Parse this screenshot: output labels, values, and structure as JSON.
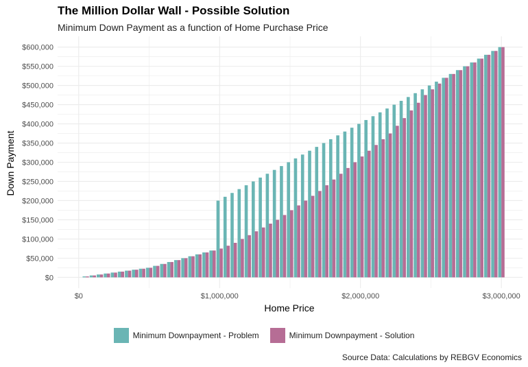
{
  "colors": {
    "problem": "#6ab5b4",
    "solution": "#b66d95",
    "grid": "#ebebeb",
    "axis_text": "#4d4d4d"
  },
  "chart_data": {
    "type": "bar",
    "title": "The Million Dollar Wall - Possible Solution",
    "subtitle": "Minimum Down Payment as a function of Home Purchase Price",
    "caption": "Source Data: Calculations by REBGV Economics",
    "xlabel": "Home Price",
    "ylabel": "Down Payment",
    "xlim": [
      -150000,
      3150000
    ],
    "ylim": [
      -28000,
      628000
    ],
    "x_ticks": [
      0,
      1000000,
      2000000,
      3000000
    ],
    "x_tick_labels": [
      "$0",
      "$1,000,000",
      "$2,000,000",
      "$3,000,000"
    ],
    "y_ticks": [
      0,
      50000,
      100000,
      150000,
      200000,
      250000,
      300000,
      350000,
      400000,
      450000,
      500000,
      550000,
      600000
    ],
    "y_tick_labels": [
      "$0",
      "$50,000",
      "$100,000",
      "$150,000",
      "$200,000",
      "$250,000",
      "$300,000",
      "$350,000",
      "$400,000",
      "$450,000",
      "$500,000",
      "$550,000",
      "$600,000"
    ],
    "legend_position": "bottom",
    "grid": true,
    "x": [
      50000,
      100000,
      150000,
      200000,
      250000,
      300000,
      350000,
      400000,
      450000,
      500000,
      550000,
      600000,
      650000,
      700000,
      750000,
      800000,
      850000,
      900000,
      950000,
      1000000,
      1050000,
      1100000,
      1150000,
      1200000,
      1250000,
      1300000,
      1350000,
      1400000,
      1450000,
      1500000,
      1550000,
      1600000,
      1650000,
      1700000,
      1750000,
      1800000,
      1850000,
      1900000,
      1950000,
      2000000,
      2050000,
      2100000,
      2150000,
      2200000,
      2250000,
      2300000,
      2350000,
      2400000,
      2450000,
      2500000,
      2550000,
      2600000,
      2650000,
      2700000,
      2750000,
      2800000,
      2850000,
      2900000,
      2950000,
      3000000
    ],
    "series": [
      {
        "name": "Minimum Downpayment - Problem",
        "values": [
          2500,
          5000,
          7500,
          10000,
          12500,
          15000,
          17500,
          20000,
          22500,
          25000,
          30000,
          35000,
          40000,
          45000,
          50000,
          55000,
          60000,
          65000,
          70000,
          200000,
          210000,
          220000,
          230000,
          240000,
          250000,
          260000,
          270000,
          280000,
          290000,
          300000,
          310000,
          320000,
          330000,
          340000,
          350000,
          360000,
          370000,
          380000,
          390000,
          400000,
          410000,
          420000,
          430000,
          440000,
          450000,
          460000,
          470000,
          480000,
          490000,
          500000,
          510000,
          520000,
          530000,
          540000,
          550000,
          560000,
          570000,
          580000,
          590000,
          600000
        ]
      },
      {
        "name": "Minimum Downpayment - Solution",
        "values": [
          2500,
          5000,
          7500,
          10000,
          12500,
          15000,
          17500,
          20000,
          22500,
          25000,
          30000,
          35000,
          40000,
          45000,
          50000,
          55000,
          60000,
          65000,
          70000,
          75000,
          82500,
          90000,
          100000,
          110000,
          120000,
          130000,
          140000,
          150000,
          162500,
          175000,
          187500,
          200000,
          212500,
          225000,
          240000,
          255000,
          270000,
          285000,
          300000,
          315000,
          330000,
          345000,
          360000,
          375000,
          395000,
          415000,
          435000,
          455000,
          475000,
          490000,
          505000,
          520000,
          530000,
          540000,
          550000,
          560000,
          570000,
          580000,
          590000,
          600000
        ]
      }
    ]
  }
}
